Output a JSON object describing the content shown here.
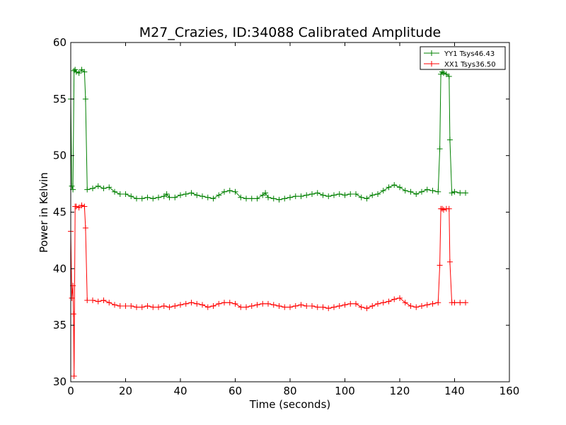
{
  "chart_data": {
    "type": "line",
    "title": "M27_Crazies, ID:34088 Calibrated Amplitude",
    "xlabel": "Time (seconds)",
    "ylabel": "Power in Kelvin",
    "xlim": [
      0,
      160
    ],
    "ylim": [
      30,
      60
    ],
    "xticks": [
      0,
      20,
      40,
      60,
      80,
      100,
      120,
      140,
      160
    ],
    "yticks": [
      30,
      35,
      40,
      45,
      50,
      55,
      60
    ],
    "grid": false,
    "legend_position": "top-right",
    "marker": "+",
    "series": [
      {
        "name": "YY1 Tsys46.43",
        "color": "#008000",
        "x": [
          0,
          0.4,
          0.8,
          1.2,
          1.6,
          2,
          3,
          4,
          5,
          5.4,
          6,
          8,
          10,
          12,
          14,
          16,
          18,
          20,
          22,
          24,
          26,
          28,
          30,
          32,
          34,
          35,
          36,
          38,
          40,
          42,
          44,
          46,
          48,
          50,
          52,
          54,
          56,
          58,
          60,
          62,
          64,
          66,
          68,
          70,
          71,
          72,
          74,
          76,
          78,
          80,
          82,
          84,
          86,
          88,
          90,
          92,
          94,
          96,
          98,
          100,
          102,
          104,
          106,
          108,
          110,
          112,
          114,
          116,
          118,
          120,
          122,
          124,
          126,
          128,
          130,
          132,
          134,
          134.6,
          135,
          135.5,
          136,
          137,
          138,
          138.3,
          139,
          140,
          142,
          144
        ],
        "values": [
          55.0,
          47.3,
          47.0,
          57.5,
          57.6,
          57.4,
          57.3,
          57.6,
          57.4,
          55.0,
          47.0,
          47.1,
          47.3,
          47.1,
          47.2,
          46.8,
          46.6,
          46.6,
          46.4,
          46.2,
          46.2,
          46.3,
          46.2,
          46.3,
          46.4,
          46.6,
          46.3,
          46.3,
          46.5,
          46.6,
          46.7,
          46.5,
          46.4,
          46.3,
          46.2,
          46.5,
          46.8,
          46.9,
          46.8,
          46.3,
          46.2,
          46.2,
          46.2,
          46.5,
          46.7,
          46.3,
          46.2,
          46.1,
          46.2,
          46.3,
          46.4,
          46.4,
          46.5,
          46.6,
          46.7,
          46.5,
          46.4,
          46.5,
          46.6,
          46.5,
          46.6,
          46.6,
          46.3,
          46.2,
          46.5,
          46.6,
          46.9,
          47.2,
          47.4,
          47.2,
          46.9,
          46.8,
          46.6,
          46.8,
          47.0,
          46.9,
          46.8,
          50.6,
          57.2,
          57.4,
          57.3,
          57.2,
          57.0,
          51.4,
          46.7,
          46.8,
          46.7,
          46.7
        ]
      },
      {
        "name": "XX1 Tsys36.50",
        "color": "#ff0000",
        "x": [
          0,
          0.4,
          0.8,
          1.0,
          1.2,
          1.6,
          2,
          3,
          4,
          5,
          5.4,
          6,
          8,
          10,
          12,
          14,
          16,
          18,
          20,
          22,
          24,
          26,
          28,
          30,
          32,
          34,
          36,
          38,
          40,
          42,
          44,
          46,
          48,
          50,
          52,
          54,
          56,
          58,
          60,
          62,
          64,
          66,
          68,
          70,
          72,
          74,
          76,
          78,
          80,
          82,
          84,
          86,
          88,
          90,
          92,
          94,
          96,
          98,
          100,
          102,
          104,
          106,
          108,
          110,
          112,
          114,
          116,
          118,
          120,
          122,
          124,
          126,
          128,
          130,
          132,
          134,
          134.6,
          135,
          135.5,
          136,
          137,
          138,
          138.3,
          139,
          140,
          142,
          144
        ],
        "values": [
          43.3,
          37.4,
          38.5,
          36.0,
          30.5,
          45.5,
          45.5,
          45.4,
          45.6,
          45.5,
          43.6,
          37.2,
          37.2,
          37.1,
          37.2,
          37.0,
          36.8,
          36.7,
          36.7,
          36.7,
          36.6,
          36.6,
          36.7,
          36.6,
          36.6,
          36.7,
          36.6,
          36.7,
          36.8,
          36.9,
          37.0,
          36.9,
          36.8,
          36.6,
          36.7,
          36.9,
          37.0,
          37.0,
          36.9,
          36.6,
          36.6,
          36.7,
          36.8,
          36.9,
          36.9,
          36.8,
          36.7,
          36.6,
          36.6,
          36.7,
          36.8,
          36.7,
          36.7,
          36.6,
          36.6,
          36.5,
          36.6,
          36.7,
          36.8,
          36.9,
          36.9,
          36.6,
          36.5,
          36.7,
          36.9,
          37.0,
          37.1,
          37.3,
          37.4,
          37.0,
          36.7,
          36.6,
          36.7,
          36.8,
          36.9,
          37.0,
          40.3,
          45.3,
          45.3,
          45.2,
          45.3,
          45.3,
          40.6,
          37.0,
          37.0,
          37.0,
          37.0
        ]
      }
    ]
  }
}
